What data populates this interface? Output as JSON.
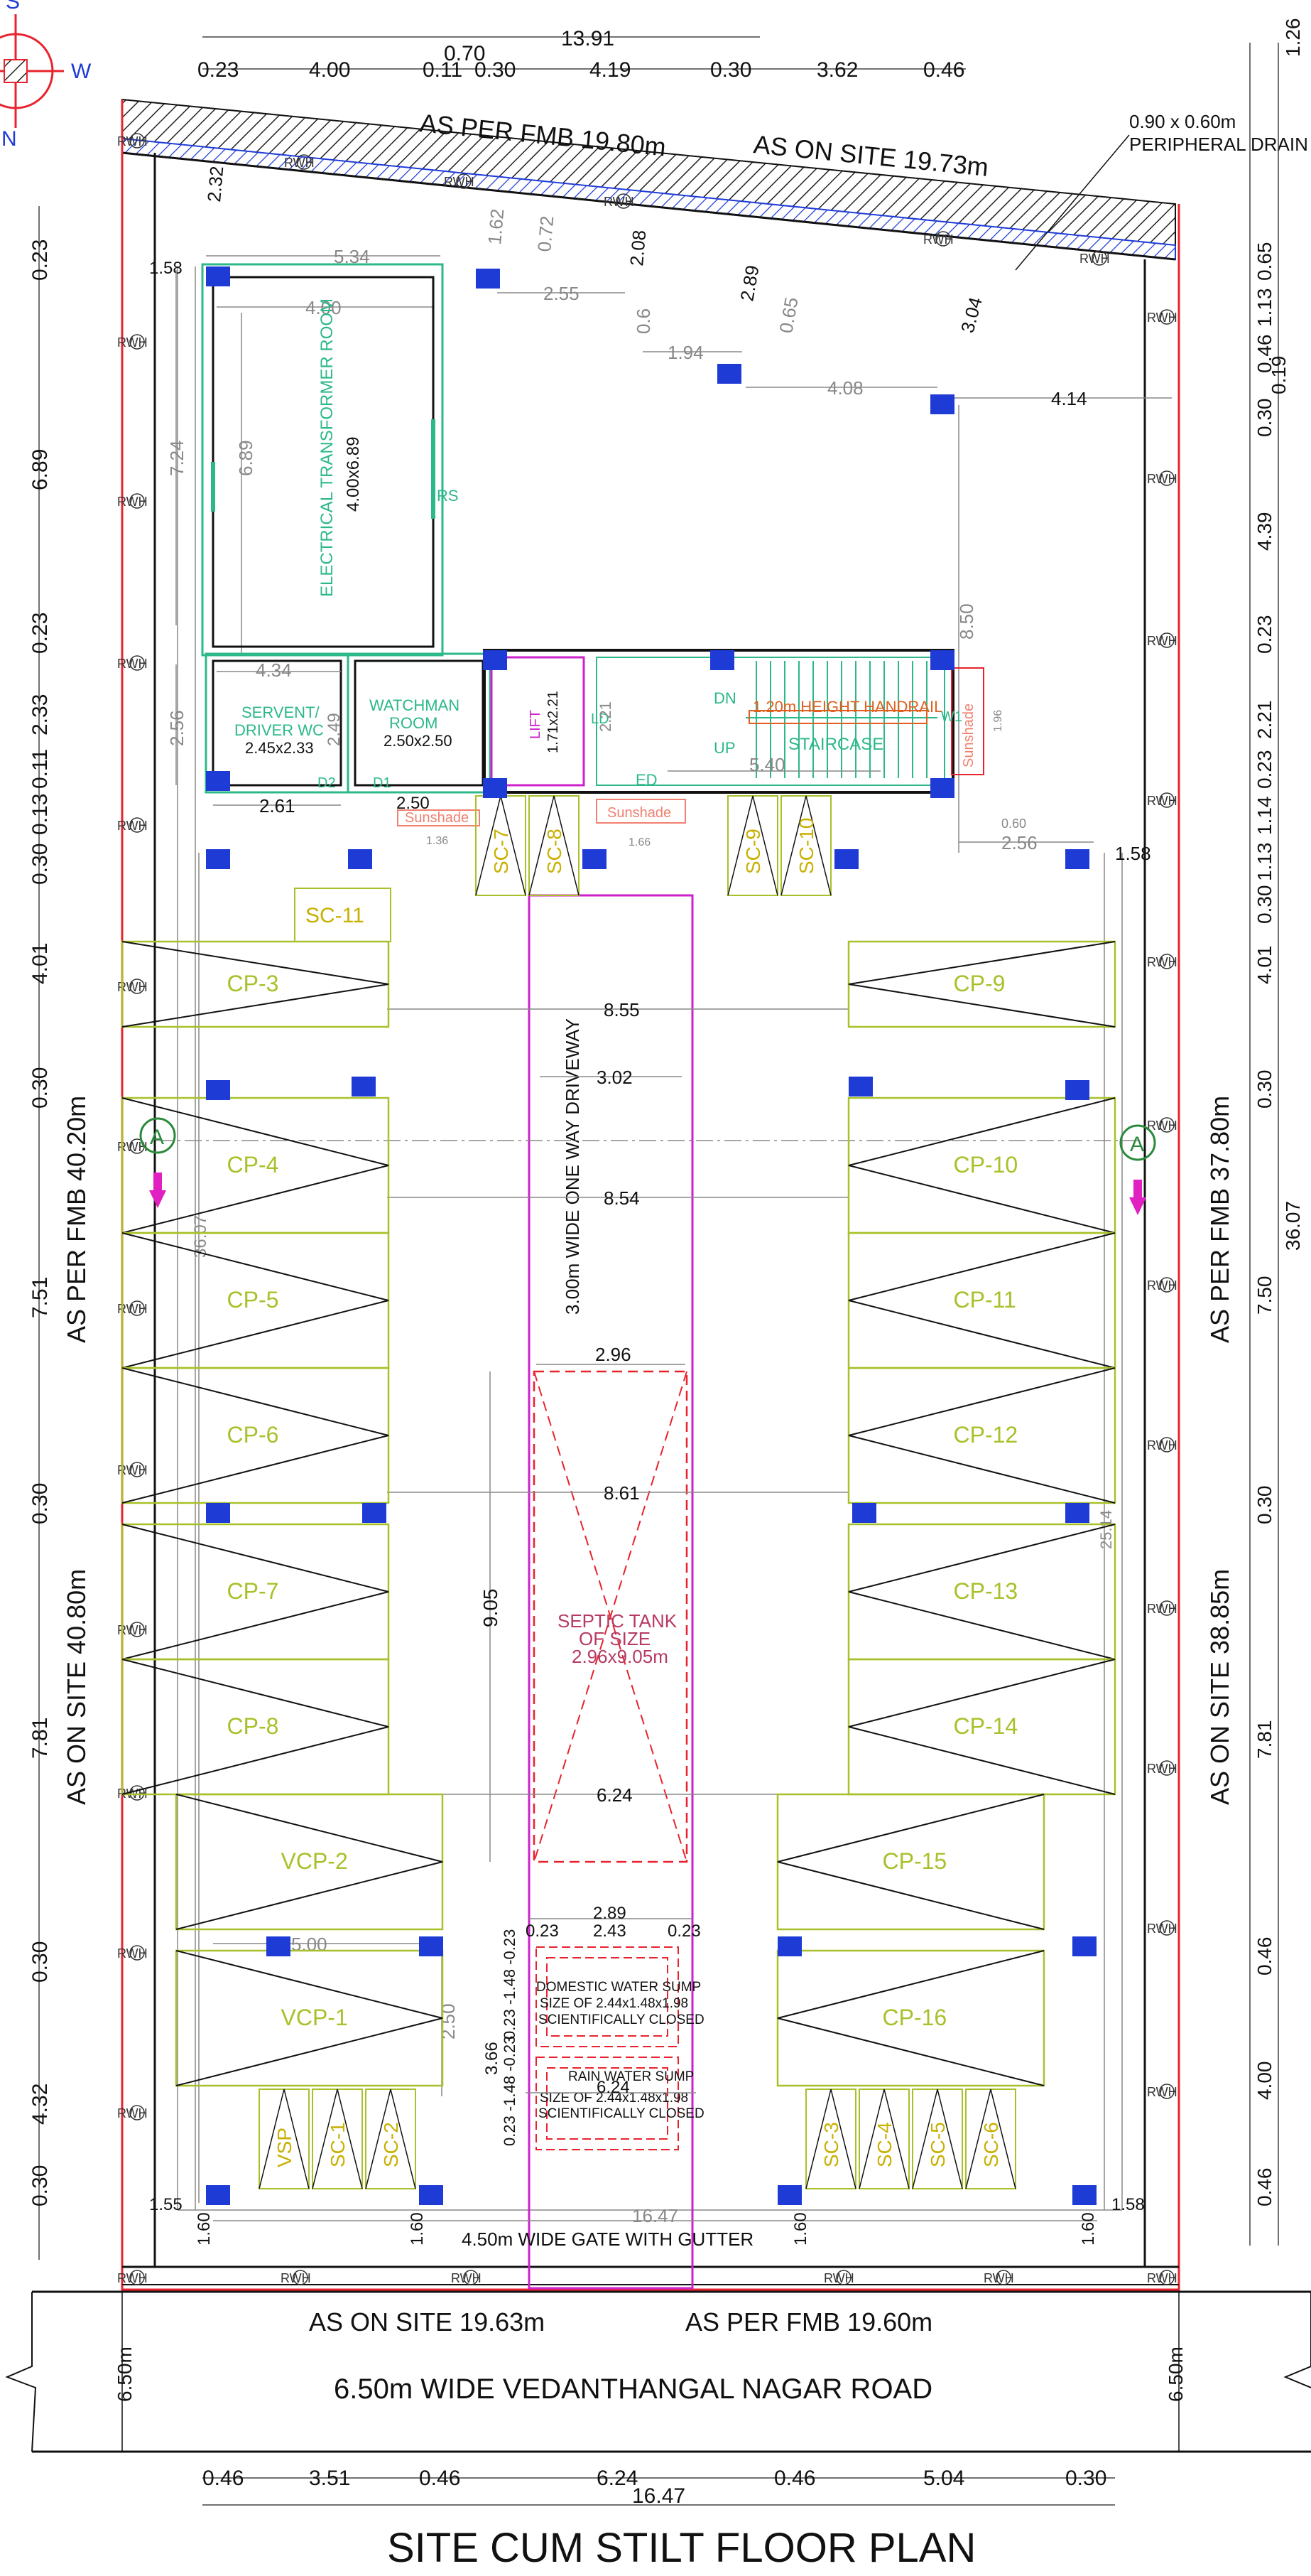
{
  "title": "SITE CUM STILT FLOOR PLAN",
  "compass": {
    "n": "N",
    "s": "S",
    "w": "W"
  },
  "boundary_labels": {
    "fmb_top": "AS PER FMB 19.80m",
    "site_top": "AS ON SITE 19.73m",
    "fmb_left": "AS PER FMB 40.20m",
    "site_left": "AS ON SITE 40.80m",
    "fmb_right": "AS PER FMB 37.80m",
    "site_right": "AS ON SITE 38.85m",
    "site_bottom": "AS ON SITE 19.63m",
    "fmb_bottom": "AS PER FMB 19.60m"
  },
  "road": {
    "label": "6.50m WIDE VEDANTHANGAL NAGAR ROAD",
    "width_left": "6.50m",
    "width_right": "6.50m"
  },
  "drain": {
    "size": "0.90 x 0.60m",
    "label": "PERIPHERAL DRAIN"
  },
  "gate": "4.50m WIDE GATE WITH GUTTER",
  "driveway": "3.00m WIDE ONE WAY DRIVEWAY",
  "rooms": {
    "transformer": "ELECTRICAL TRANSFORMER ROOM",
    "transformer_size": "4.00x6.89",
    "rs": "RS",
    "servant1": "SERVENT/",
    "servant2": "DRIVER WC",
    "servant_size": "2.45x2.33",
    "watch1": "WATCHMAN",
    "watch2": "ROOM",
    "watch_size": "2.50x2.50",
    "lift": "LIFT",
    "lift_size": "1.71x2.21",
    "ld": "LD",
    "ed": "ED",
    "staircase": "STAIRCASE",
    "handrail": "1.20m HEIGHT HANDRAIL",
    "dn": "DN",
    "up": "UP",
    "d1": "D1",
    "d2": "D2",
    "w1": "W1",
    "sunshade": "Sunshade"
  },
  "septic": {
    "l1": "SEPTIC TANK",
    "l2": "OF SIZE",
    "l3": "2.96x9.05m"
  },
  "domestic_sump": {
    "l1": "DOMESTIC WATER SUMP",
    "l2": "SIZE OF 2.44x1.48x1.98",
    "l3": "SCIENTIFICALLY CLOSED"
  },
  "rain_sump": {
    "l1": "RAIN WATER SUMP",
    "l2": "SIZE OF 2.44x1.48x1.98",
    "l3": "SCIENTIFICALLY CLOSED"
  },
  "parking": [
    "CP-3",
    "CP-4",
    "CP-5",
    "CP-6",
    "CP-7",
    "CP-8",
    "CP-9",
    "CP-10",
    "CP-11",
    "CP-12",
    "CP-13",
    "CP-14",
    "CP-15",
    "CP-16",
    "VCP-1",
    "VCP-2"
  ],
  "scooters": [
    "SC-1",
    "SC-2",
    "SC-3",
    "SC-4",
    "SC-5",
    "SC-6",
    "SC-7",
    "SC-8",
    "SC-9",
    "SC-10",
    "SC-11",
    "VSP"
  ],
  "rwh": "RWH",
  "section_mark": "A",
  "dims_top": [
    "0.23",
    "4.00",
    "0.11",
    "0.30",
    "4.19",
    "0.30",
    "3.62",
    "0.46"
  ],
  "dims_top_extra": {
    "total": "13.91",
    "small": "0.70"
  },
  "dims_bottom": [
    "0.46",
    "3.51",
    "0.46",
    "6.24",
    "0.46",
    "5.04",
    "0.30"
  ],
  "dims_bottom_total": "16.47",
  "dims_left": [
    "0.23",
    "6.89",
    "0.23",
    "2.33",
    "0.11",
    "0.13",
    "0.30",
    "4.01",
    "0.30",
    "7.51",
    "0.30",
    "7.81",
    "0.30",
    "4.32",
    "0.30"
  ],
  "dims_right": [
    "1.26",
    "0.65",
    "1.13",
    "0.46",
    "0.19",
    "0.30",
    "4.39",
    "0.23",
    "2.21",
    "0.23",
    "1.14",
    "1.13",
    "0.30",
    "4.01",
    "0.30",
    "7.50",
    "0.30",
    "7.81",
    "0.46",
    "4.00",
    "0.46"
  ],
  "dims_right_total": "36.07",
  "dims_inner": {
    "d232": "2.32",
    "d158a": "1.58",
    "d534": "5.34",
    "d400": "4.00",
    "d724": "7.24",
    "d689": "6.89",
    "d162": "1.62",
    "d072": "0.72",
    "d208": "2.08",
    "d255": "2.55",
    "d06": "0.6",
    "d194": "1.94",
    "d289": "2.89",
    "d065": "0.65",
    "d408": "4.08",
    "d304": "3.04",
    "d414": "4.14",
    "d850": "8.50",
    "d434": "4.34",
    "d256": "2.56",
    "d249": "2.49",
    "d261": "2.61",
    "d250": "2.50",
    "d221": "2.21",
    "d540": "5.40",
    "d196": "1.96",
    "d136": "1.36",
    "d166": "1.66",
    "d060": "0.60",
    "d256b": "2.56",
    "d158b": "1.58",
    "d855": "8.55",
    "d302": "3.02",
    "d854": "8.54",
    "d3607": "36.07",
    "d296": "2.96",
    "d861": "8.61",
    "d905": "9.05",
    "d2514": "25.14",
    "d624": "6.24",
    "d289b": "2.89",
    "d023a": "0.23",
    "d243": "2.43",
    "d023b": "0.23",
    "d500": "5.00",
    "d250b": "2.50",
    "d366": "3.66",
    "stackA": "0.23 -1.48 -0.23",
    "stackB": "0.23 -1.48 -0.23",
    "d624b": "6.24",
    "d155": "1.55",
    "d1647": "16.47",
    "d158c": "1.58",
    "d160": "1.60"
  },
  "colors": {
    "red": "#e8232e",
    "blue": "#1e3bd6",
    "green": "#2cb88a",
    "olive": "#a8c12a",
    "magenta": "#cc22cc",
    "orange": "#f08070",
    "gray": "#9a9a9a"
  }
}
